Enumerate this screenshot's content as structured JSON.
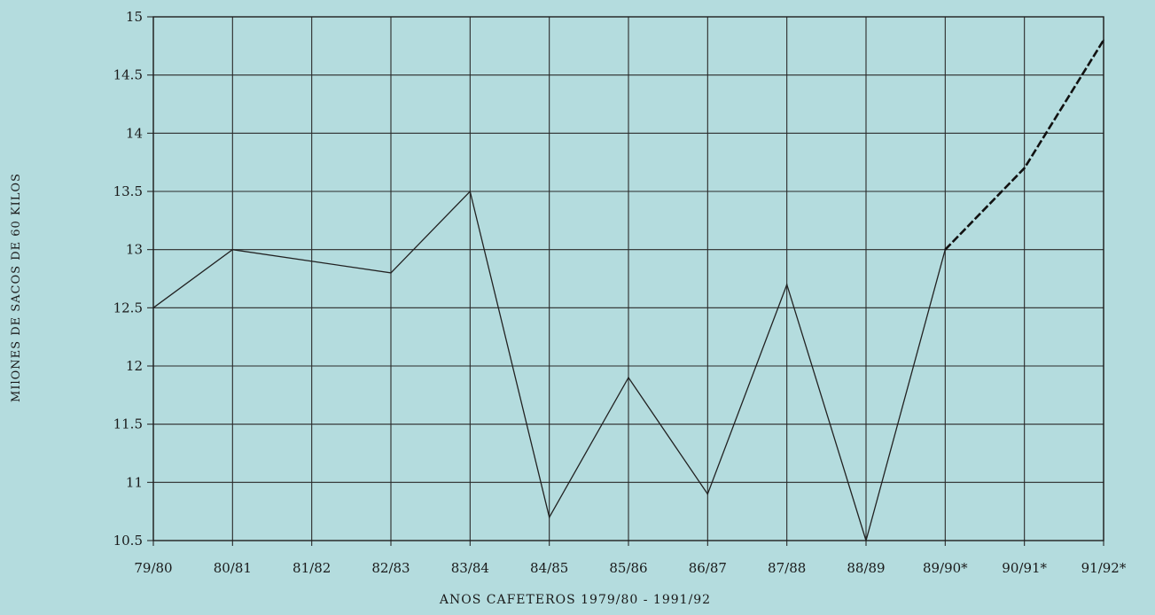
{
  "chart_data": {
    "type": "line",
    "title": "",
    "xlabel": "ANOS CAFETEROS 1979/80   -   1991/92",
    "ylabel": "MIlONES DE SACOS DE 60 KILOS",
    "categories": [
      "79/80",
      "80/81",
      "81/82",
      "82/83",
      "83/84",
      "84/85",
      "85/86",
      "86/87",
      "87/88",
      "88/89",
      "89/90*",
      "90/91*",
      "91/92*"
    ],
    "ylim": [
      10.5,
      15
    ],
    "yticks": [
      "10.5",
      "11",
      "11.5",
      "12",
      "12.5",
      "13",
      "13.5",
      "14",
      "14.5",
      "15"
    ],
    "grid": true,
    "series": [
      {
        "style": "solid",
        "color": "#222222",
        "points": [
          {
            "x": "79/80",
            "y": 12.5
          },
          {
            "x": "80/81",
            "y": 13.0
          },
          {
            "x": "82/83",
            "y": 12.8
          },
          {
            "x": "83/84",
            "y": 13.5
          },
          {
            "x": "84/85",
            "y": 10.7
          },
          {
            "x": "85/86",
            "y": 11.9
          },
          {
            "x": "86/87",
            "y": 10.9
          },
          {
            "x": "87/88",
            "y": 12.7
          },
          {
            "x": "88/89",
            "y": 10.5
          },
          {
            "x": "89/90*",
            "y": 13.0
          }
        ]
      },
      {
        "style": "dashed",
        "color": "#111111",
        "points": [
          {
            "x": "89/90*",
            "y": 13.0
          },
          {
            "x": "90/91*",
            "y": 13.7
          },
          {
            "x": "91/92*",
            "y": 14.8
          }
        ]
      }
    ]
  }
}
